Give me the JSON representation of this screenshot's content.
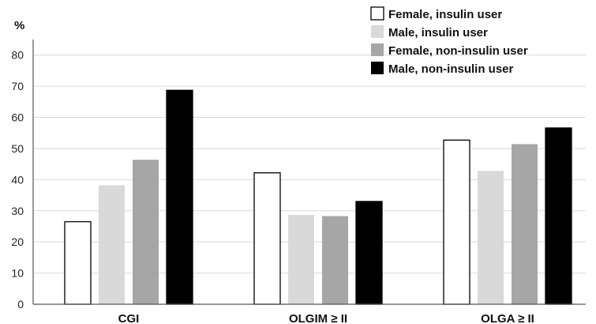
{
  "chart_data": {
    "type": "bar",
    "ylabel": "%",
    "xlabel": "",
    "ylim": [
      0,
      85
    ],
    "yticks": [
      0,
      10,
      20,
      30,
      40,
      50,
      60,
      70,
      80
    ],
    "grid": true,
    "legend": "top-right",
    "categories": [
      "CGI",
      "OLGIM ≥ II",
      "OLGA ≥ II"
    ],
    "series": [
      {
        "name": "Female, insulin user",
        "values": [
          26.5,
          42.2,
          52.7
        ],
        "color": "#ffffff",
        "stroke": "#000000"
      },
      {
        "name": "Male, insulin user",
        "values": [
          38.2,
          28.7,
          42.8
        ],
        "color": "#d9d9d9",
        "stroke": "#d9d9d9"
      },
      {
        "name": "Female, non-insulin user",
        "values": [
          46.4,
          28.3,
          51.4
        ],
        "color": "#a6a6a6",
        "stroke": "#a6a6a6"
      },
      {
        "name": "Male, non-insulin user",
        "values": [
          68.7,
          33.0,
          56.6
        ],
        "color": "#000000",
        "stroke": "#000000"
      }
    ]
  }
}
